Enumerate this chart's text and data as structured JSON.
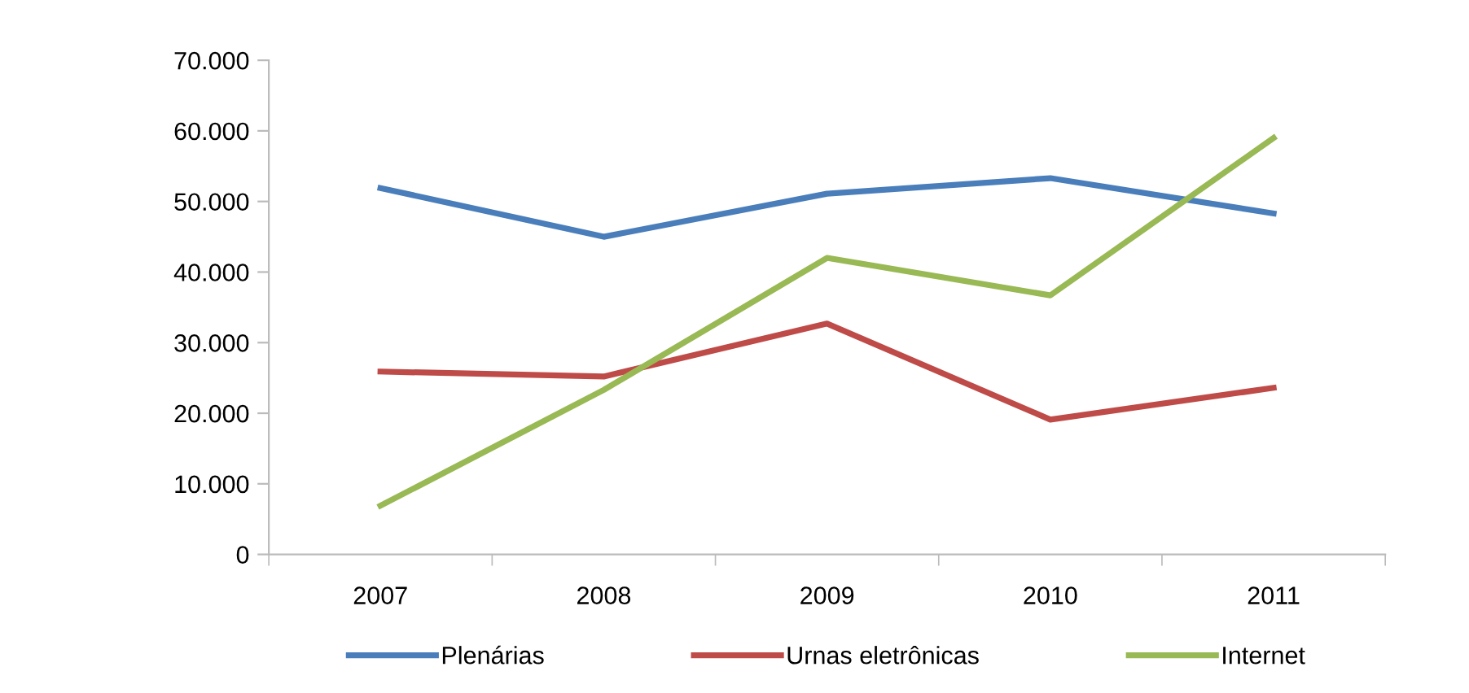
{
  "chart_data": {
    "type": "line",
    "categories": [
      "2007",
      "2008",
      "2009",
      "2010",
      "2011"
    ],
    "series": [
      {
        "name": "Plenárias",
        "color": "#4a7ebb",
        "values": [
          51900,
          45000,
          51100,
          53300,
          48300
        ]
      },
      {
        "name": "Urnas eletrônicas",
        "color": "#be4b48",
        "values": [
          25900,
          25200,
          32700,
          19100,
          23600
        ]
      },
      {
        "name": "Internet",
        "color": "#98b954",
        "values": [
          6900,
          23300,
          42000,
          36700,
          59000
        ]
      }
    ],
    "ylim": [
      0,
      70000
    ],
    "yticks": [
      0,
      {
        "value": 10000,
        "label": "10.000"
      },
      {
        "value": 20000,
        "label": "20.000"
      },
      {
        "value": 30000,
        "label": "30.000"
      },
      {
        "value": 40000,
        "label": "40.000"
      },
      {
        "value": 50000,
        "label": "50.000"
      },
      {
        "value": 60000,
        "label": "60.000"
      },
      {
        "value": 70000,
        "label": "70.000"
      }
    ],
    "grid": false,
    "legend": "bottom",
    "marker": "none",
    "line_style": "solid"
  }
}
